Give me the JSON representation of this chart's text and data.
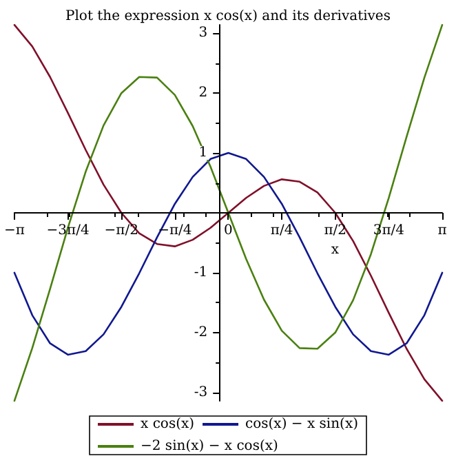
{
  "chart_data": {
    "type": "line",
    "title": "Plot the expression x cos(x) and its derivatives",
    "xlabel": "x",
    "x": [
      -3.1416,
      -2.8798,
      -2.618,
      -2.3562,
      -2.0944,
      -1.8326,
      -1.5708,
      -1.309,
      -1.0472,
      -0.7854,
      -0.5236,
      -0.2618,
      0,
      0.2618,
      0.5236,
      0.7854,
      1.0472,
      1.309,
      1.5708,
      1.8326,
      2.0944,
      2.3562,
      2.618,
      2.8798,
      3.1416
    ],
    "series": [
      {
        "name": "x cos(x)",
        "color": "#80102a",
        "values": [
          3.14,
          2.78,
          2.27,
          1.67,
          1.05,
          0.47,
          0,
          -0.34,
          -0.52,
          -0.56,
          -0.45,
          -0.25,
          0,
          0.25,
          0.45,
          0.56,
          0.52,
          0.34,
          0,
          -0.47,
          -1.05,
          -1.67,
          -2.27,
          -2.78,
          -3.14
        ]
      },
      {
        "name": "cos(x) − x sin(x)",
        "color": "#101890",
        "values": [
          -1,
          -1.71,
          -2.18,
          -2.37,
          -2.31,
          -2.03,
          -1.57,
          -1.01,
          -0.41,
          0.15,
          0.6,
          0.9,
          1,
          0.9,
          0.6,
          0.15,
          -0.41,
          -1.01,
          -1.57,
          -2.03,
          -2.31,
          -2.37,
          -2.18,
          -1.71,
          -1
        ]
      },
      {
        "name": "−2 sin(x) − x cos(x)",
        "color": "#4a8010",
        "values": [
          -3.14,
          -2.26,
          -1.27,
          -0.25,
          0.69,
          1.46,
          2,
          2.27,
          2.26,
          1.97,
          1.45,
          0.77,
          0,
          -0.77,
          -1.45,
          -1.97,
          -2.26,
          -2.27,
          -2,
          -1.46,
          -0.69,
          0.25,
          1.27,
          2.26,
          3.14
        ]
      }
    ],
    "xlim": [
      -3.1416,
      3.1416
    ],
    "ylim": [
      -3.1416,
      3.1416
    ],
    "xticks": [
      {
        "value": -3.1416,
        "label": "−π"
      },
      {
        "value": -2.3562,
        "label": "−3π/4"
      },
      {
        "value": -1.5708,
        "label": "−π/2"
      },
      {
        "value": -0.7854,
        "label": "−π/4"
      },
      {
        "value": 0,
        "label": "0"
      },
      {
        "value": 0.7854,
        "label": "π/4"
      },
      {
        "value": 1.5708,
        "label": "π/2"
      },
      {
        "value": 2.3562,
        "label": "3π/4"
      },
      {
        "value": 3.1416,
        "label": "π"
      }
    ],
    "yticks": [
      -3,
      -2,
      -1,
      1,
      2,
      3
    ],
    "legend": "bottom",
    "grid": false,
    "marker": "none",
    "line_style": "solid"
  }
}
